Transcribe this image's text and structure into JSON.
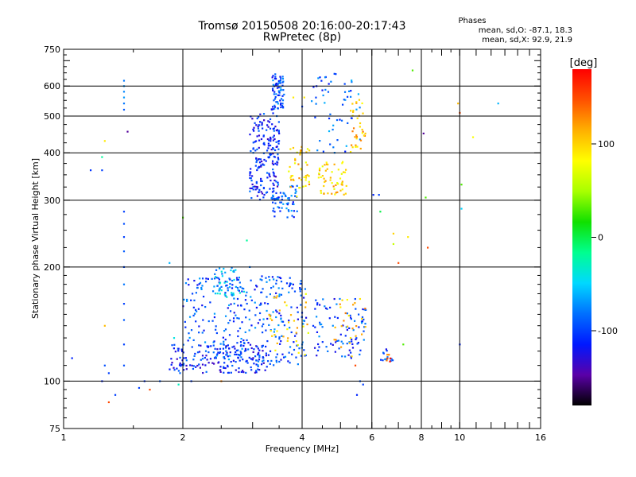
{
  "title": "Tromsø 20150508 20:16:00-20:17:43",
  "subtitle": "RwPretec (8p)",
  "phase_stats": {
    "label": "Phases",
    "o_line": "mean, sd,O: -87.1, 18.3",
    "x_line": "mean, sd,X:  92.9, 21.9"
  },
  "chart_data": {
    "type": "scatter",
    "title": "Tromsø 20150508 20:16:00-20:17:43",
    "subtitle": "RwPretec (8p)",
    "xlabel": "Frequency [MHz]",
    "ylabel": "Stationary phase Virtual Height [km]",
    "x_scale": "log",
    "y_scale": "log",
    "xlim": [
      1,
      16
    ],
    "ylim": [
      75,
      750
    ],
    "x_ticks": [
      1,
      2,
      4,
      6,
      8,
      10,
      16
    ],
    "y_ticks": [
      75,
      100,
      200,
      300,
      400,
      500,
      600,
      750
    ],
    "x_gridlines": [
      2,
      4,
      6,
      8,
      10
    ],
    "y_gridlines": [
      100,
      200,
      300,
      400,
      500,
      600
    ],
    "grid": true,
    "colorbar": {
      "label": "[deg]",
      "min": -180,
      "max": 180,
      "ticks": [
        100,
        0,
        -100
      ],
      "colors": [
        "#000000",
        "#5a00a8",
        "#0018ff",
        "#0070ff",
        "#00d8ff",
        "#00ff90",
        "#10e000",
        "#a8ff00",
        "#ffff00",
        "#ffb000",
        "#ff5000",
        "#ff0000"
      ]
    },
    "points": [
      [
        1.05,
        115,
        -110
      ],
      [
        1.17,
        360,
        -105
      ],
      [
        1.25,
        360,
        -100
      ],
      [
        1.25,
        390,
        -20
      ],
      [
        1.27,
        430,
        90
      ],
      [
        1.27,
        140,
        110
      ],
      [
        1.27,
        110,
        -95
      ],
      [
        1.3,
        88,
        150
      ],
      [
        1.35,
        92,
        -100
      ],
      [
        1.45,
        455,
        -150
      ],
      [
        1.42,
        620,
        -80
      ],
      [
        1.42,
        600,
        -70
      ],
      [
        1.42,
        580,
        -75
      ],
      [
        1.42,
        560,
        -70
      ],
      [
        1.42,
        540,
        -80
      ],
      [
        1.42,
        520,
        -90
      ],
      [
        1.42,
        280,
        -100
      ],
      [
        1.42,
        260,
        -95
      ],
      [
        1.42,
        240,
        -100
      ],
      [
        1.42,
        220,
        -90
      ],
      [
        1.42,
        200,
        -95
      ],
      [
        1.42,
        180,
        -80
      ],
      [
        1.42,
        160,
        -100
      ],
      [
        1.42,
        145,
        -90
      ],
      [
        1.42,
        125,
        -100
      ],
      [
        1.42,
        110,
        -95
      ],
      [
        1.3,
        105,
        -100
      ],
      [
        1.25,
        100,
        -110
      ],
      [
        1.55,
        96,
        -100
      ],
      [
        1.6,
        100,
        -105
      ],
      [
        1.65,
        95,
        150
      ],
      [
        1.75,
        100,
        -90
      ],
      [
        1.85,
        205,
        -60
      ],
      [
        1.9,
        130,
        -40
      ],
      [
        1.95,
        98,
        -30
      ],
      [
        2.0,
        270,
        30
      ],
      [
        2.1,
        100,
        -100
      ],
      [
        2.5,
        100,
        130
      ],
      [
        2.9,
        235,
        -20
      ],
      [
        2.95,
        200,
        -80
      ],
      [
        3.6,
        570,
        -80
      ],
      [
        3.8,
        560,
        90
      ],
      [
        4.05,
        560,
        90
      ],
      [
        4.0,
        530,
        -100
      ],
      [
        5.3,
        130,
        90
      ],
      [
        5.45,
        110,
        150
      ],
      [
        6.05,
        310,
        -110
      ],
      [
        6.25,
        310,
        -100
      ],
      [
        6.3,
        280,
        0
      ],
      [
        6.8,
        245,
        100
      ],
      [
        6.8,
        230,
        60
      ],
      [
        7.4,
        240,
        90
      ],
      [
        7.0,
        205,
        150
      ],
      [
        7.2,
        125,
        30
      ],
      [
        7.6,
        660,
        30
      ],
      [
        8.1,
        450,
        -150
      ],
      [
        8.2,
        305,
        30
      ],
      [
        8.3,
        225,
        150
      ],
      [
        9.9,
        540,
        110
      ],
      [
        10.0,
        510,
        150
      ],
      [
        10.1,
        330,
        30
      ],
      [
        10.1,
        285,
        -50
      ],
      [
        10.0,
        125,
        -110
      ],
      [
        10.8,
        440,
        80
      ],
      [
        12.5,
        540,
        -60
      ],
      [
        5.5,
        92,
        -110
      ],
      [
        5.6,
        100,
        -90
      ],
      [
        5.7,
        98,
        -100
      ]
    ],
    "clusters": [
      {
        "name": "upper-trace-left",
        "fmin": 2.95,
        "fmax": 3.5,
        "hmin": 300,
        "hmax": 510,
        "phase": -110,
        "n": 200
      },
      {
        "name": "upper-trace-cusp",
        "fmin": 3.35,
        "fmax": 3.6,
        "hmin": 520,
        "hmax": 650,
        "phase": -95,
        "n": 70
      },
      {
        "name": "cusp-stem",
        "fmin": 3.35,
        "fmax": 3.9,
        "hmin": 270,
        "hmax": 330,
        "phase": -90,
        "n": 60
      },
      {
        "name": "upper-trace-x",
        "fmin": 3.7,
        "fmax": 4.2,
        "hmin": 300,
        "hmax": 420,
        "phase": 100,
        "n": 45
      },
      {
        "name": "upper-trace-x-right",
        "fmin": 4.4,
        "fmax": 5.2,
        "hmin": 310,
        "hmax": 380,
        "phase": 100,
        "n": 55
      },
      {
        "name": "upper-right-o",
        "fmin": 4.2,
        "fmax": 5.6,
        "hmin": 400,
        "hmax": 650,
        "phase": -90,
        "n": 55
      },
      {
        "name": "upper-right-x",
        "fmin": 5.3,
        "fmax": 5.8,
        "hmin": 400,
        "hmax": 560,
        "phase": 110,
        "n": 35
      },
      {
        "name": "lower-trace-o",
        "fmin": 1.85,
        "fmax": 3.3,
        "hmin": 105,
        "hmax": 125,
        "phase": -110,
        "n": 170
      },
      {
        "name": "lower-cloud",
        "fmin": 2.0,
        "fmax": 4.1,
        "hmin": 110,
        "hmax": 190,
        "phase": -95,
        "n": 330
      },
      {
        "name": "lower-hump",
        "fmin": 2.4,
        "fmax": 2.9,
        "hmin": 165,
        "hmax": 200,
        "phase": -60,
        "n": 50
      },
      {
        "name": "lower-x",
        "fmin": 3.3,
        "fmax": 4.2,
        "hmin": 115,
        "hmax": 170,
        "phase": 95,
        "n": 35
      },
      {
        "name": "lower-right",
        "fmin": 4.2,
        "fmax": 5.8,
        "hmin": 115,
        "hmax": 165,
        "phase": -100,
        "n": 90
      },
      {
        "name": "lower-right-x",
        "fmin": 4.8,
        "fmax": 5.8,
        "hmin": 115,
        "hmax": 165,
        "phase": 110,
        "n": 25
      },
      {
        "name": "small-group",
        "fmin": 6.3,
        "fmax": 6.8,
        "hmin": 113,
        "hmax": 122,
        "phase": -95,
        "n": 15
      },
      {
        "name": "small-group-x",
        "fmin": 6.5,
        "fmax": 6.7,
        "hmin": 112,
        "hmax": 120,
        "phase": 150,
        "n": 6
      }
    ]
  }
}
